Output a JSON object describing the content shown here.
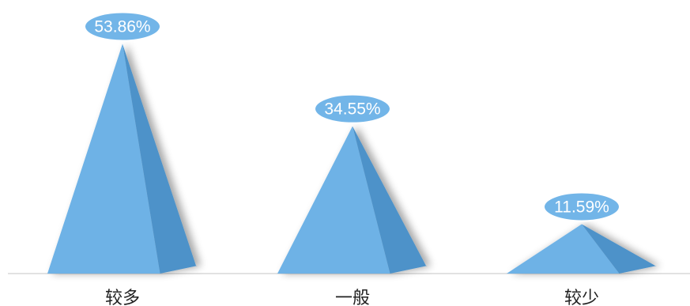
{
  "chart_data": {
    "type": "bar",
    "style": "3d-pyramid",
    "title": "",
    "xlabel": "",
    "ylabel": "",
    "categories": [
      "较多",
      "一般",
      "较少"
    ],
    "values": [
      53.86,
      34.55,
      11.59
    ],
    "value_labels": [
      "53.86%",
      "34.55%",
      "11.59%"
    ],
    "ylim": [
      0,
      56
    ],
    "grid": false,
    "legend": "none"
  },
  "colors": {
    "front_face": "#6EB2E6",
    "side_face": "#4D92C9",
    "label_bubble": "#72B5E8",
    "label_bubble_border": "#FFFFFF",
    "baseline": "#D8D8D8",
    "category_text": "#222222"
  }
}
